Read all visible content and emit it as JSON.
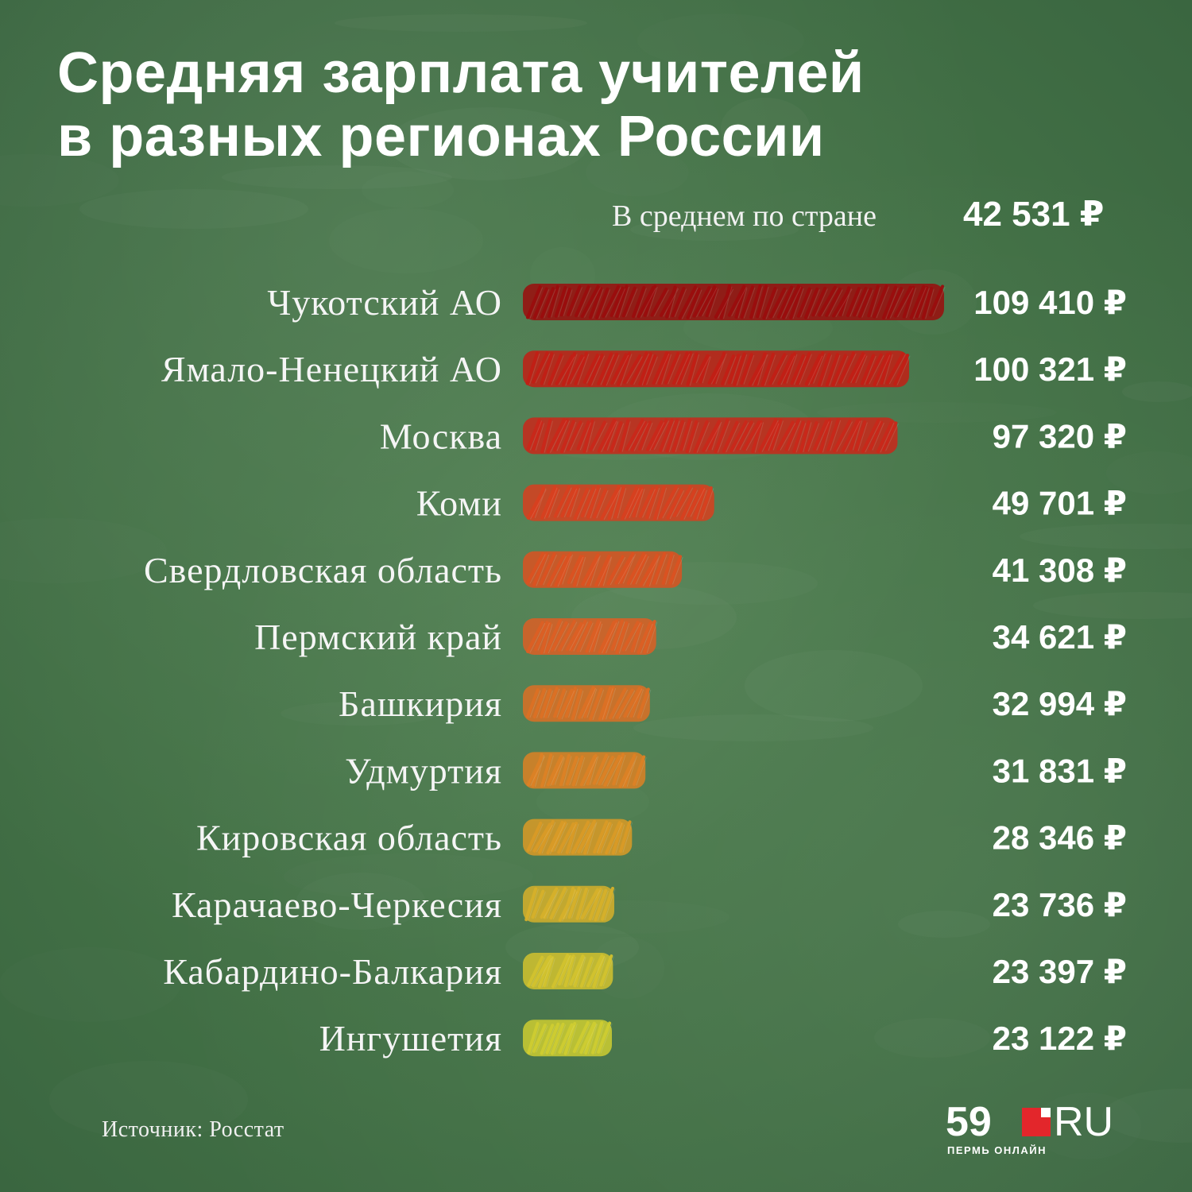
{
  "title": {
    "line1": "Средняя зарплата учителей",
    "line2": "в разных регионах России"
  },
  "average": {
    "label": "В среднем по стране",
    "value": "42 531 ₽"
  },
  "source": "Источник: Росстат",
  "logo": {
    "number": "59",
    "suffix": "RU",
    "subtitle": "ПЕРМЬ ОНЛАЙН"
  },
  "colors": {
    "background": "#437146",
    "brand_red": "#e3262b"
  },
  "chart_data": {
    "type": "bar",
    "orientation": "horizontal",
    "categories": [
      "Чукотский АО",
      "Ямало-Ненецкий АО",
      "Москва",
      "Коми",
      "Свердловская область",
      "Пермский край",
      "Башкирия",
      "Удмуртия",
      "Кировская область",
      "Карачаево-Черкесия",
      "Кабардино-Балкария",
      "Ингушетия"
    ],
    "values": [
      109410,
      100321,
      97320,
      49701,
      41308,
      34621,
      32994,
      31831,
      28346,
      23736,
      23397,
      23122
    ],
    "value_labels": [
      "109 410 ₽",
      "100 321 ₽",
      "97 320 ₽",
      "49 701 ₽",
      "41 308 ₽",
      "34 621 ₽",
      "32 994 ₽",
      "31 831 ₽",
      "28 346 ₽",
      "23 736 ₽",
      "23 397 ₽",
      "23 122 ₽"
    ],
    "bar_colors": [
      "#9b0d0d",
      "#c21f15",
      "#c9281a",
      "#d8401f",
      "#db5221",
      "#dc5f24",
      "#dc7024",
      "#dc8125",
      "#d99a26",
      "#d6b02a",
      "#d2c22e",
      "#cdcc31"
    ],
    "xlim": [
      0,
      109410
    ],
    "grid": false,
    "legend": "none"
  }
}
